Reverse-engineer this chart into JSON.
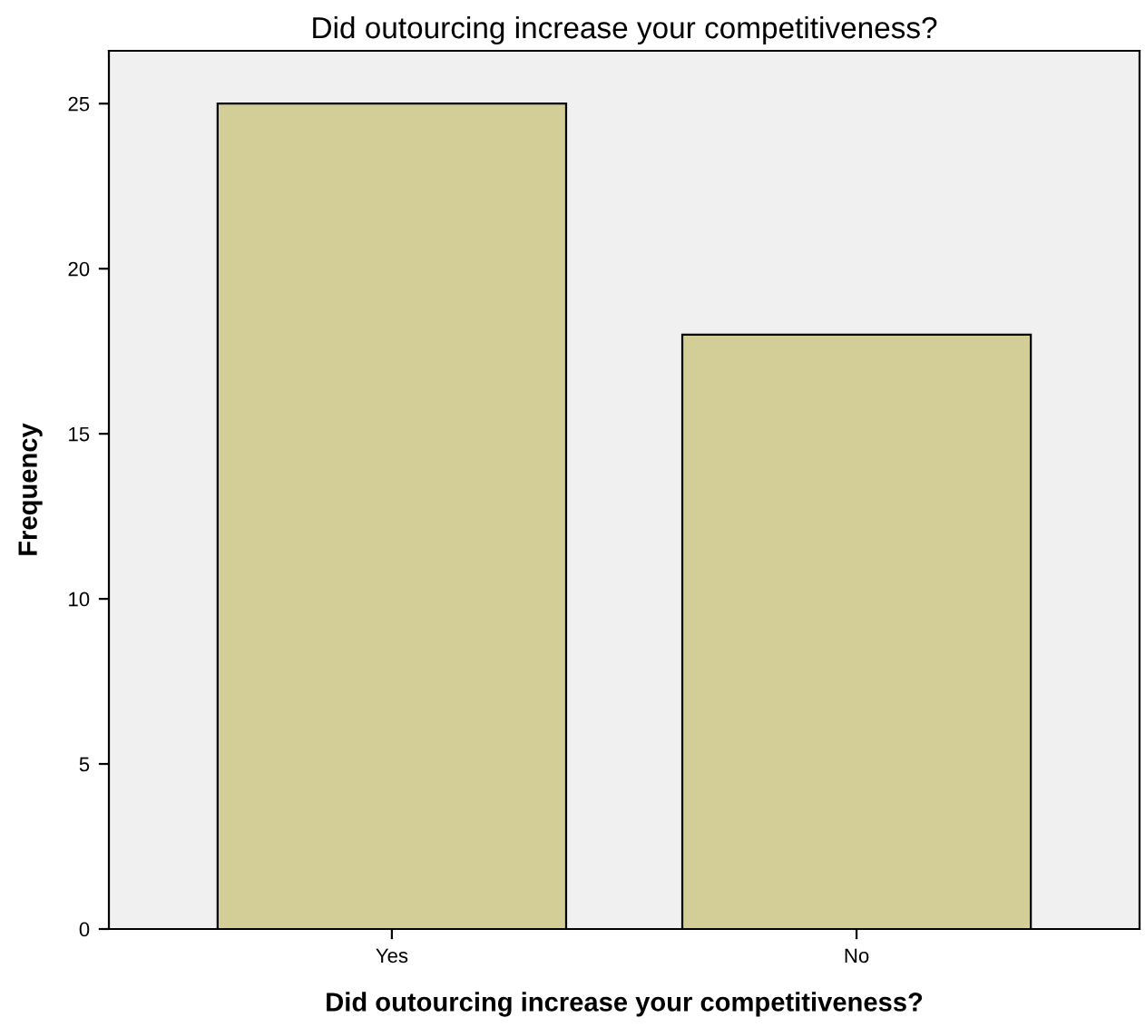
{
  "chart_data": {
    "type": "bar",
    "title": "Did outourcing increase your competitiveness?",
    "xlabel": "Did outourcing increase your competitiveness?",
    "ylabel": "Frequency",
    "categories": [
      "Yes",
      "No"
    ],
    "values": [
      25,
      18
    ],
    "color": "#d3ce97",
    "ylim": [
      0,
      26.6
    ],
    "yticks": [
      0,
      5,
      10,
      15,
      20,
      25
    ],
    "grid": false,
    "legend": false
  }
}
